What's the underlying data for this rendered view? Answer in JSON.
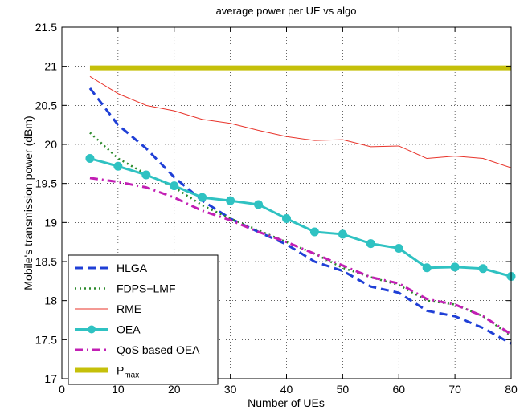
{
  "chart_data": {
    "type": "line",
    "title": "average power per UE vs algo",
    "xlabel": "Number of UEs",
    "ylabel": "Mobile's transmission power (dBm)",
    "xlim": [
      0,
      80
    ],
    "ylim": [
      17,
      21.5
    ],
    "xticks": [
      0,
      10,
      20,
      30,
      40,
      50,
      60,
      70,
      80
    ],
    "yticks": [
      17,
      17.5,
      18,
      18.5,
      19,
      19.5,
      20,
      20.5,
      21,
      21.5
    ],
    "grid": true,
    "legend_position": "bottom-left",
    "x": [
      5,
      10,
      15,
      20,
      25,
      30,
      35,
      40,
      45,
      50,
      55,
      60,
      65,
      70,
      75,
      80
    ],
    "series": [
      {
        "name": "HLGA",
        "color": "#1f3fd6",
        "style": "dashed",
        "values": [
          20.72,
          20.25,
          19.95,
          19.58,
          19.28,
          19.05,
          18.88,
          18.72,
          18.5,
          18.38,
          18.18,
          18.1,
          17.87,
          17.8,
          17.65,
          17.45
        ]
      },
      {
        "name": "FDPS−LMF",
        "color": "#2a8a2a",
        "style": "dotted",
        "values": [
          20.15,
          19.82,
          19.62,
          19.45,
          19.22,
          19.05,
          18.9,
          18.75,
          18.6,
          18.42,
          18.3,
          18.2,
          18.0,
          17.95,
          17.8,
          17.55
        ]
      },
      {
        "name": "RME",
        "color": "#e8332a",
        "style": "solid-thin",
        "values": [
          20.87,
          20.65,
          20.5,
          20.43,
          20.32,
          20.27,
          20.18,
          20.1,
          20.05,
          20.06,
          19.97,
          19.98,
          19.82,
          19.85,
          19.82,
          19.7
        ]
      },
      {
        "name": "OEA",
        "color": "#2fc2c2",
        "style": "solid-marker",
        "values": [
          19.82,
          19.72,
          19.61,
          19.47,
          19.32,
          19.28,
          19.23,
          19.05,
          18.88,
          18.85,
          18.73,
          18.67,
          18.42,
          18.43,
          18.41,
          18.31
        ]
      },
      {
        "name": "QoS based OEA",
        "color": "#c21fb4",
        "style": "dashdot",
        "values": [
          19.57,
          19.52,
          19.45,
          19.32,
          19.15,
          19.03,
          18.88,
          18.75,
          18.6,
          18.45,
          18.3,
          18.22,
          18.02,
          17.95,
          17.8,
          17.57
        ]
      },
      {
        "name": "P",
        "name_subscript": "max",
        "color": "#c5c00a",
        "style": "solid-thick",
        "values": [
          20.98,
          20.98,
          20.98,
          20.98,
          20.98,
          20.98,
          20.98,
          20.98,
          20.98,
          20.98,
          20.98,
          20.98,
          20.98,
          20.98,
          20.98,
          20.98
        ]
      }
    ]
  }
}
